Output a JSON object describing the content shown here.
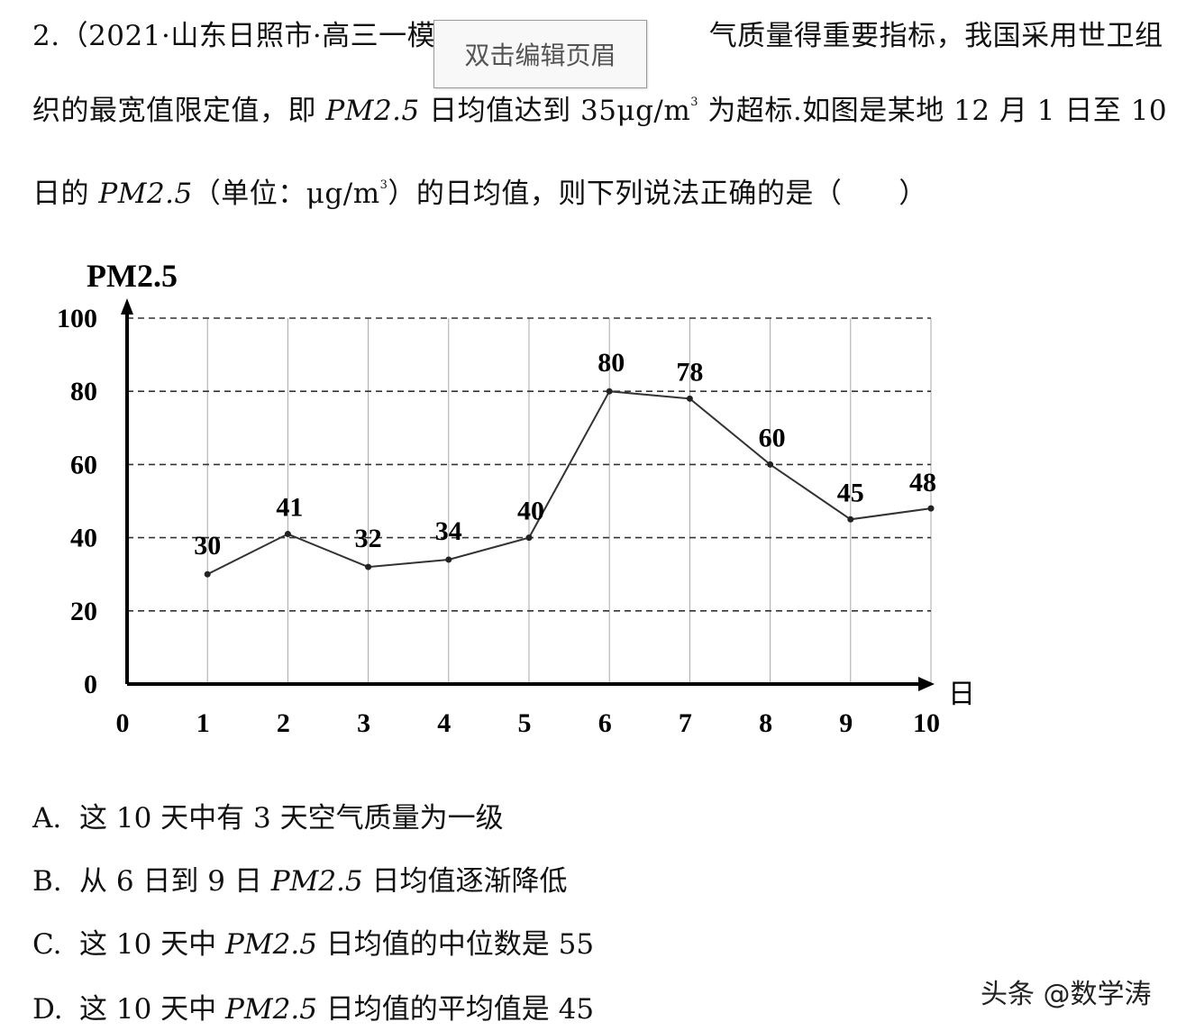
{
  "question": {
    "line1": "2.（2021·山东日照市·高三一模）",
    "line1_right": "气质量得重要指标，我国采用世卫组",
    "line2_a": "织的最宽值限定值，即 ",
    "line2_pm": "PM2.5",
    "line2_b": " 日均值达到 35μg/m",
    "line2_sup": "3",
    "line2_c": " 为超标.如图是某地 12 月 1 日至 10",
    "line3_a": "日的 ",
    "line3_pm": "PM2.5",
    "line3_b": "（单位：μg/m",
    "line3_sup": "3",
    "line3_c": "）的日均值，则下列说法正确的是（　　）"
  },
  "header_tooltip": "双击编辑页眉",
  "options": [
    {
      "letter": "A.",
      "pre": "这 10 天中有 3 天空气质量为一级",
      "pm": "",
      "post": ""
    },
    {
      "letter": "B.",
      "pre": "从 6 日到 9 日 ",
      "pm": "PM2.5",
      "post": " 日均值逐渐降低"
    },
    {
      "letter": "C.",
      "pre": "这 10 天中 ",
      "pm": "PM2.5",
      "post": " 日均值的中位数是 55"
    },
    {
      "letter": "D.",
      "pre": "这 10 天中 ",
      "pm": "PM2.5",
      "post": " 日均值的平均值是 45"
    }
  ],
  "watermark": "头条 @数学涛",
  "chart_data": {
    "type": "line",
    "ylabel": "PM2.5",
    "xlabel": "日",
    "x": [
      1,
      2,
      3,
      4,
      5,
      6,
      7,
      8,
      9,
      10
    ],
    "values": [
      30,
      41,
      32,
      34,
      40,
      80,
      78,
      60,
      45,
      48
    ],
    "xticks": [
      "0",
      "1",
      "2",
      "3",
      "4",
      "5",
      "6",
      "7",
      "8",
      "9",
      "10"
    ],
    "yticks": [
      "0",
      "20",
      "40",
      "60",
      "80",
      "100"
    ],
    "xlim": [
      0,
      10
    ],
    "ylim": [
      0,
      100
    ],
    "grid": "vertical solid gray lines; horizontal dashed lines",
    "line_color": "#333333"
  }
}
